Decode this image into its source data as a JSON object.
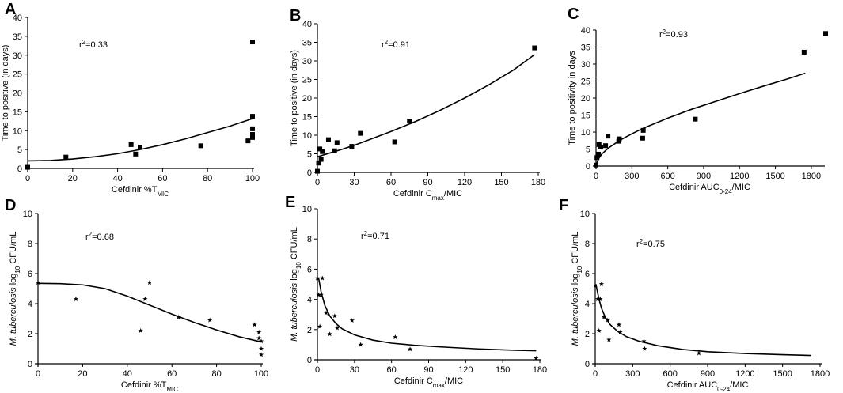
{
  "figure": {
    "panel_count": 6
  },
  "chart_data": [
    {
      "letter": "A",
      "type": "scatter",
      "title": "",
      "xlabel": "Cefdinir %T",
      "xlabel_sub": "MIC",
      "xlabel_tail": "",
      "ylabel": "Time to positive (in days)",
      "ylabel_italic": "",
      "ylabel_sub": "",
      "ylabel_tail": "",
      "annotation_base": "r",
      "annotation_sup": "2",
      "annotation_text": "=0.33",
      "xlim": [
        0,
        100
      ],
      "ylim": [
        0,
        40
      ],
      "xticks": [
        0,
        20,
        40,
        60,
        80,
        100
      ],
      "yticks": [
        0,
        5,
        10,
        15,
        20,
        25,
        30,
        35,
        40
      ],
      "xtick_labels": [
        "0",
        "20",
        "40",
        "60",
        "80",
        "100"
      ],
      "ytick_labels": [
        "0",
        "5",
        "10",
        "15",
        "20",
        "25",
        "30",
        "35",
        "40"
      ],
      "marker": "square",
      "points": [
        [
          0,
          0.3
        ],
        [
          17,
          3
        ],
        [
          46,
          6.3
        ],
        [
          48,
          3.8
        ],
        [
          50,
          5.6
        ],
        [
          77,
          6
        ],
        [
          98,
          7.3
        ],
        [
          100,
          8.2
        ],
        [
          100,
          9
        ],
        [
          100,
          10.5
        ],
        [
          100,
          13.8
        ],
        [
          100,
          33.5
        ]
      ],
      "fit": [
        [
          0,
          2.0
        ],
        [
          10,
          2.1
        ],
        [
          20,
          2.5
        ],
        [
          30,
          3.1
        ],
        [
          40,
          3.9
        ],
        [
          50,
          5.0
        ],
        [
          60,
          6.3
        ],
        [
          70,
          7.8
        ],
        [
          80,
          9.5
        ],
        [
          90,
          11.2
        ],
        [
          100,
          13.2
        ]
      ]
    },
    {
      "letter": "B",
      "type": "scatter",
      "title": "",
      "xlabel": "Cefdinir C",
      "xlabel_sub": "max",
      "xlabel_tail": "/MIC",
      "ylabel": "Time to positive (in days)",
      "ylabel_italic": "",
      "ylabel_sub": "",
      "ylabel_tail": "",
      "annotation_base": "r",
      "annotation_sup": "2",
      "annotation_text": "=0.91",
      "xlim": [
        0,
        180
      ],
      "ylim": [
        0,
        40
      ],
      "xticks": [
        0,
        30,
        60,
        90,
        120,
        150,
        180
      ],
      "yticks": [
        0,
        5,
        10,
        15,
        20,
        25,
        30,
        35,
        40
      ],
      "xtick_labels": [
        "0",
        "30",
        "60",
        "90",
        "120",
        "150",
        "180"
      ],
      "ytick_labels": [
        "0",
        "5",
        "10",
        "15",
        "20",
        "25",
        "30",
        "35",
        "40"
      ],
      "marker": "square",
      "points": [
        [
          0,
          0.3
        ],
        [
          1,
          2.5
        ],
        [
          2,
          6.3
        ],
        [
          3,
          3.5
        ],
        [
          4,
          5.6
        ],
        [
          9,
          8.8
        ],
        [
          14,
          5.8
        ],
        [
          16,
          8
        ],
        [
          28,
          7
        ],
        [
          35,
          10.5
        ],
        [
          63,
          8.2
        ],
        [
          75,
          13.8
        ],
        [
          177,
          33.5
        ]
      ],
      "fit": [
        [
          0,
          4.2
        ],
        [
          10,
          5.2
        ],
        [
          20,
          6.2
        ],
        [
          30,
          7.3
        ],
        [
          40,
          8.5
        ],
        [
          60,
          11.0
        ],
        [
          80,
          13.7
        ],
        [
          100,
          16.7
        ],
        [
          120,
          20.0
        ],
        [
          140,
          23.6
        ],
        [
          160,
          27.6
        ],
        [
          177,
          31.7
        ]
      ]
    },
    {
      "letter": "C",
      "type": "scatter",
      "title": "",
      "xlabel": "Cefdinir AUC",
      "xlabel_sub": "0-24",
      "xlabel_tail": "/MIC",
      "ylabel": "Time to positivity in days",
      "ylabel_italic": "",
      "ylabel_sub": "",
      "ylabel_tail": "",
      "annotation_base": "r",
      "annotation_sup": "2",
      "annotation_text": "=0.93",
      "xlim": [
        0,
        1900
      ],
      "ylim": [
        0,
        40
      ],
      "xticks": [
        0,
        300,
        600,
        900,
        1200,
        1500,
        1800
      ],
      "yticks": [
        0,
        5,
        10,
        15,
        20,
        25,
        30,
        35,
        40
      ],
      "xtick_labels": [
        "0",
        "300",
        "600",
        "900",
        "1200",
        "1500",
        "1800"
      ],
      "ytick_labels": [
        "0",
        "5",
        "10",
        "15",
        "20",
        "25",
        "30",
        "35",
        "40"
      ],
      "marker": "square",
      "points": [
        [
          0,
          0.3
        ],
        [
          8,
          2.5
        ],
        [
          20,
          3.5
        ],
        [
          25,
          6.3
        ],
        [
          40,
          5.6
        ],
        [
          80,
          6
        ],
        [
          100,
          8.8
        ],
        [
          190,
          7.3
        ],
        [
          195,
          8
        ],
        [
          390,
          8.2
        ],
        [
          395,
          10.5
        ],
        [
          830,
          13.8
        ],
        [
          1740,
          33.5
        ],
        [
          1920,
          39
        ]
      ],
      "fit": [
        [
          0,
          0
        ],
        [
          20,
          2.1
        ],
        [
          50,
          3.6
        ],
        [
          100,
          5.2
        ],
        [
          200,
          7.6
        ],
        [
          300,
          9.5
        ],
        [
          400,
          11.2
        ],
        [
          600,
          14.1
        ],
        [
          800,
          16.7
        ],
        [
          1000,
          19.0
        ],
        [
          1200,
          21.3
        ],
        [
          1400,
          23.5
        ],
        [
          1600,
          25.6
        ],
        [
          1750,
          27.3
        ]
      ]
    },
    {
      "letter": "D",
      "type": "scatter",
      "title": "",
      "xlabel": "Cefdinir %T",
      "xlabel_sub": "MIC",
      "xlabel_tail": "",
      "ylabel": "",
      "ylabel_italic": "M. tuberculosis",
      "ylabel_sub": "10",
      "ylabel_tail": " CFU/mL",
      "ylabel_mid": " log",
      "annotation_base": "r",
      "annotation_sup": "2",
      "annotation_text": "=0.68",
      "xlim": [
        0,
        100
      ],
      "ylim": [
        0,
        10
      ],
      "xticks": [
        0,
        20,
        40,
        60,
        80,
        100
      ],
      "yticks": [
        0,
        2,
        4,
        6,
        8,
        10
      ],
      "xtick_labels": [
        "0",
        "20",
        "40",
        "60",
        "80",
        "100"
      ],
      "ytick_labels": [
        "0",
        "2",
        "4",
        "6",
        "8",
        "10"
      ],
      "marker": "star",
      "points": [
        [
          0,
          5.4
        ],
        [
          17,
          4.3
        ],
        [
          46,
          2.2
        ],
        [
          48,
          4.3
        ],
        [
          50,
          5.4
        ],
        [
          63,
          3.1
        ],
        [
          77,
          2.9
        ],
        [
          97,
          2.6
        ],
        [
          99,
          2.1
        ],
        [
          99,
          1.7
        ],
        [
          100,
          1.5
        ],
        [
          100,
          1.0
        ],
        [
          100,
          0.6
        ]
      ],
      "fit": [
        [
          0,
          5.35
        ],
        [
          10,
          5.33
        ],
        [
          20,
          5.25
        ],
        [
          30,
          5.0
        ],
        [
          40,
          4.5
        ],
        [
          50,
          3.9
        ],
        [
          60,
          3.3
        ],
        [
          70,
          2.75
        ],
        [
          80,
          2.25
        ],
        [
          90,
          1.8
        ],
        [
          100,
          1.45
        ]
      ]
    },
    {
      "letter": "E",
      "type": "scatter",
      "title": "",
      "xlabel": "Cefdinir C",
      "xlabel_sub": "max",
      "xlabel_tail": "/MIC",
      "ylabel": "",
      "ylabel_italic": "M. tuberculosis",
      "ylabel_sub": "10",
      "ylabel_tail": " CFU/mL",
      "ylabel_mid": " log",
      "annotation_base": "r",
      "annotation_sup": "2",
      "annotation_text": "=0.71",
      "xlim": [
        0,
        180
      ],
      "ylim": [
        0,
        10
      ],
      "xticks": [
        0,
        30,
        60,
        90,
        120,
        150,
        180
      ],
      "yticks": [
        0,
        2,
        4,
        6,
        8,
        10
      ],
      "xtick_labels": [
        "0",
        "30",
        "60",
        "90",
        "120",
        "150",
        "180"
      ],
      "ytick_labels": [
        "0",
        "2",
        "4",
        "6",
        "8",
        "10"
      ],
      "marker": "star",
      "points": [
        [
          0,
          5.4
        ],
        [
          1,
          4.3
        ],
        [
          2,
          2.2
        ],
        [
          3,
          4.3
        ],
        [
          4,
          5.4
        ],
        [
          7,
          3.1
        ],
        [
          10,
          1.7
        ],
        [
          14,
          2.9
        ],
        [
          16,
          2.1
        ],
        [
          28,
          2.6
        ],
        [
          35,
          1.0
        ],
        [
          63,
          1.5
        ],
        [
          75,
          0.7
        ],
        [
          177,
          0.1
        ]
      ],
      "fit": [
        [
          1,
          5.4
        ],
        [
          3,
          4.5
        ],
        [
          6,
          3.6
        ],
        [
          10,
          2.9
        ],
        [
          15,
          2.4
        ],
        [
          20,
          2.05
        ],
        [
          30,
          1.65
        ],
        [
          45,
          1.3
        ],
        [
          60,
          1.1
        ],
        [
          80,
          0.95
        ],
        [
          100,
          0.85
        ],
        [
          130,
          0.72
        ],
        [
          160,
          0.63
        ],
        [
          177,
          0.6
        ]
      ]
    },
    {
      "letter": "F",
      "type": "scatter",
      "title": "",
      "xlabel": "Cefdinir AUC",
      "xlabel_sub": "0-24",
      "xlabel_tail": "/MIC",
      "ylabel": "",
      "ylabel_italic": "M. tuberculosis",
      "ylabel_sub": "10",
      "ylabel_tail": " CFU/mL",
      "ylabel_mid": " log",
      "annotation_base": "r",
      "annotation_sup": "2",
      "annotation_text": "=0.75",
      "xlim": [
        0,
        1800
      ],
      "ylim": [
        0,
        10
      ],
      "xticks": [
        0,
        300,
        600,
        900,
        1200,
        1500,
        1800
      ],
      "yticks": [
        0,
        2,
        4,
        6,
        8,
        10
      ],
      "xtick_labels": [
        "0",
        "300",
        "600",
        "900",
        "1200",
        "1500",
        "1800"
      ],
      "ytick_labels": [
        "0",
        "2",
        "4",
        "6",
        "8",
        "10"
      ],
      "marker": "star",
      "points": [
        [
          0,
          5.2
        ],
        [
          20,
          4.3
        ],
        [
          30,
          2.2
        ],
        [
          40,
          4.3
        ],
        [
          50,
          5.3
        ],
        [
          70,
          3.1
        ],
        [
          100,
          2.9
        ],
        [
          110,
          1.6
        ],
        [
          190,
          2.6
        ],
        [
          200,
          2.1
        ],
        [
          390,
          1.5
        ],
        [
          395,
          1.0
        ],
        [
          830,
          0.7
        ]
      ],
      "fit": [
        [
          5,
          5.3
        ],
        [
          15,
          4.9
        ],
        [
          30,
          4.3
        ],
        [
          50,
          3.7
        ],
        [
          80,
          3.1
        ],
        [
          120,
          2.6
        ],
        [
          180,
          2.15
        ],
        [
          250,
          1.8
        ],
        [
          350,
          1.5
        ],
        [
          500,
          1.2
        ],
        [
          700,
          0.95
        ],
        [
          900,
          0.8
        ],
        [
          1200,
          0.68
        ],
        [
          1500,
          0.6
        ],
        [
          1730,
          0.55
        ]
      ]
    }
  ]
}
